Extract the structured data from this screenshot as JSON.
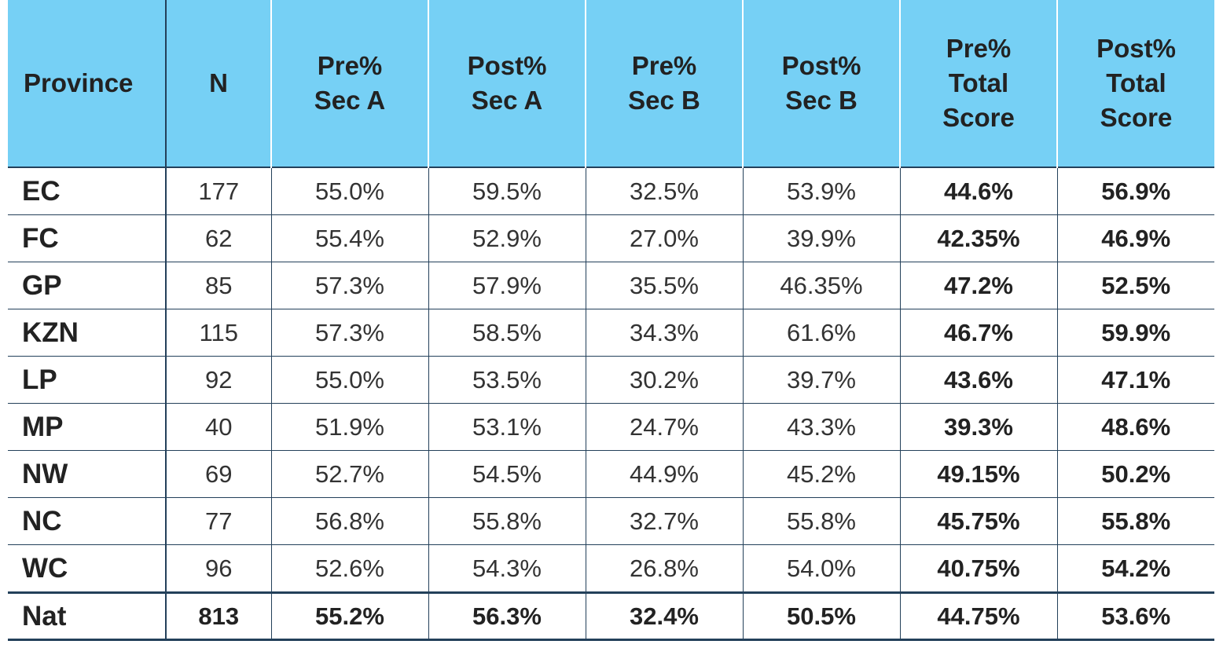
{
  "table": {
    "headers": [
      [
        "Province"
      ],
      [
        "N"
      ],
      [
        "Pre%",
        "Sec A"
      ],
      [
        "Post%",
        "Sec A"
      ],
      [
        "Pre%",
        "Sec B"
      ],
      [
        "Post%",
        "Sec B"
      ],
      [
        "Pre%",
        "Total",
        "Score"
      ],
      [
        "Post%",
        "Total",
        "Score"
      ]
    ],
    "rows": [
      [
        "EC",
        "177",
        "55.0%",
        "59.5%",
        "32.5%",
        "53.9%",
        "44.6%",
        "56.9%"
      ],
      [
        "FC",
        "62",
        "55.4%",
        "52.9%",
        "27.0%",
        "39.9%",
        "42.35%",
        "46.9%"
      ],
      [
        "GP",
        "85",
        "57.3%",
        "57.9%",
        "35.5%",
        "46.35%",
        "47.2%",
        "52.5%"
      ],
      [
        "KZN",
        "115",
        "57.3%",
        "58.5%",
        "34.3%",
        "61.6%",
        "46.7%",
        "59.9%"
      ],
      [
        "LP",
        "92",
        "55.0%",
        "53.5%",
        "30.2%",
        "39.7%",
        "43.6%",
        "47.1%"
      ],
      [
        "MP",
        "40",
        "51.9%",
        "53.1%",
        "24.7%",
        "43.3%",
        "39.3%",
        "48.6%"
      ],
      [
        "NW",
        "69",
        "52.7%",
        "54.5%",
        "44.9%",
        "45.2%",
        "49.15%",
        "50.2%"
      ],
      [
        "NC",
        "77",
        "56.8%",
        "55.8%",
        "32.7%",
        "55.8%",
        "45.75%",
        "55.8%"
      ],
      [
        "WC",
        "96",
        "52.6%",
        "54.3%",
        "26.8%",
        "54.0%",
        "40.75%",
        "54.2%"
      ]
    ],
    "total": [
      "Nat",
      "813",
      "55.2%",
      "56.3%",
      "32.4%",
      "50.5%",
      "44.75%",
      "53.6%"
    ]
  },
  "colors": {
    "header_bg": "#76d0f5",
    "rule": "#23405a"
  }
}
